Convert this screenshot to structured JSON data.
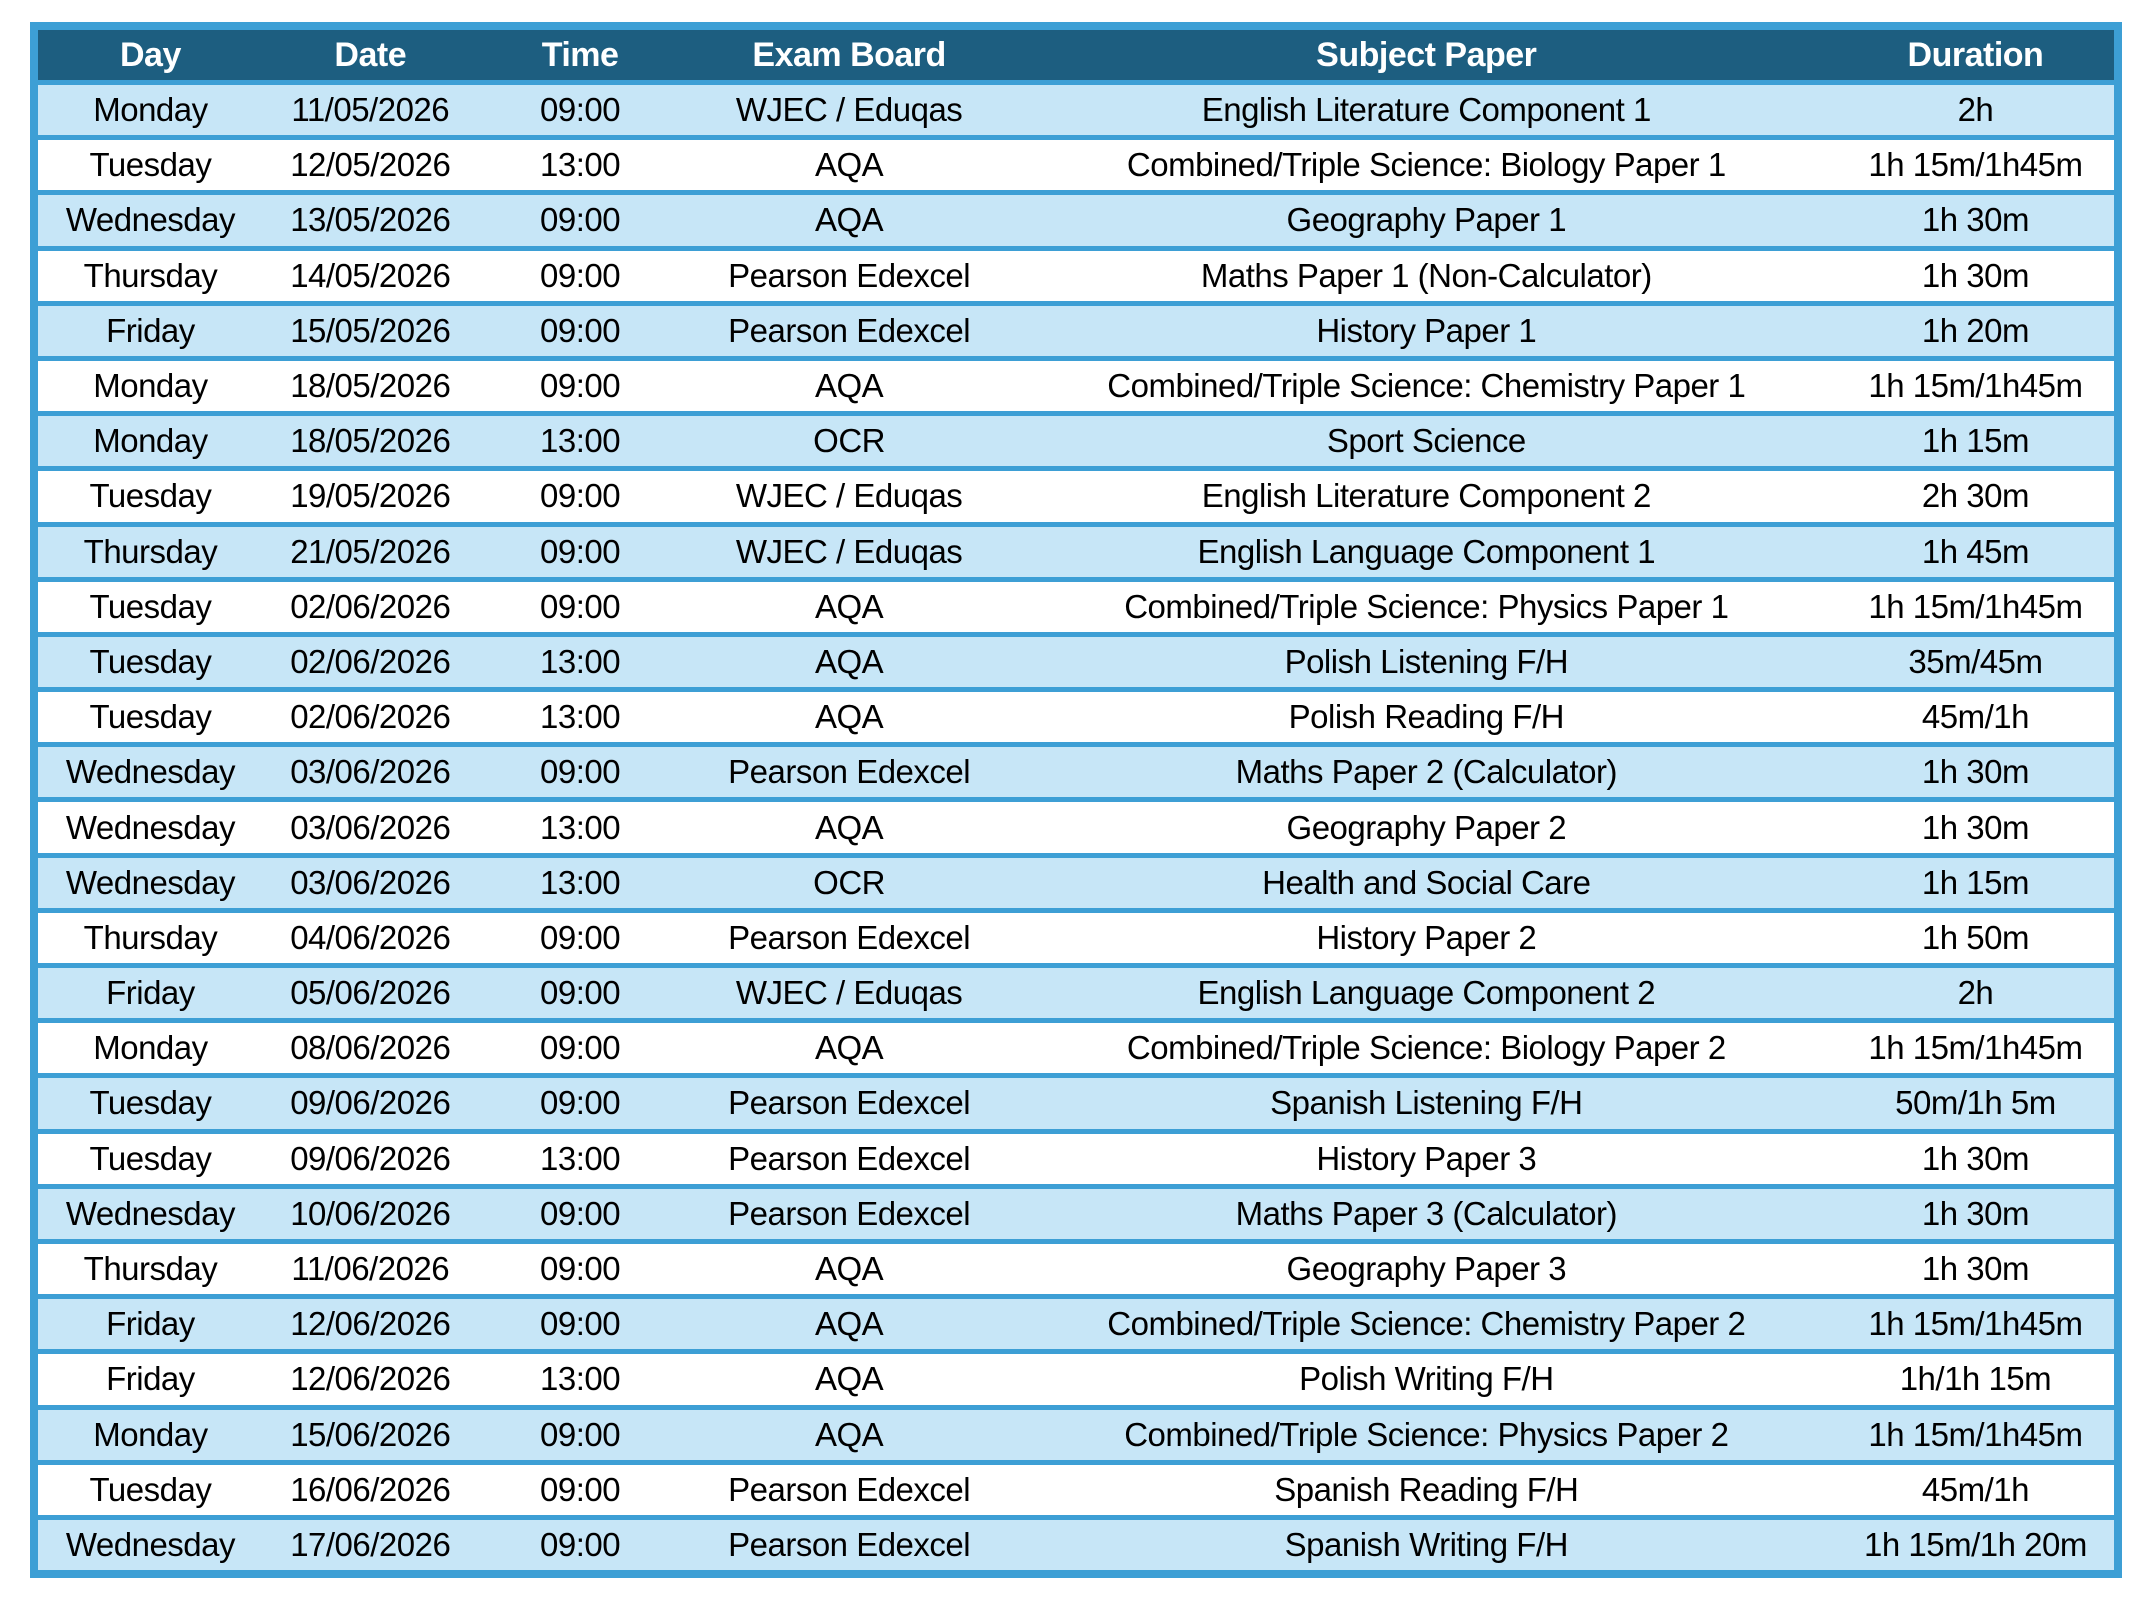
{
  "colors": {
    "border": "#3d9fd5",
    "header_bg": "#1d5e80",
    "header_text": "#ffffff",
    "row_alt": "#c7e6f7",
    "row_base": "#ffffff",
    "cell_text": "#000000"
  },
  "table": {
    "columns": [
      {
        "key": "day",
        "label": "Day"
      },
      {
        "key": "date",
        "label": "Date"
      },
      {
        "key": "time",
        "label": "Time"
      },
      {
        "key": "board",
        "label": "Exam Board"
      },
      {
        "key": "subject",
        "label": "Subject Paper"
      },
      {
        "key": "duration",
        "label": "Duration"
      }
    ],
    "rows": [
      {
        "day": "Monday",
        "date": "11/05/2026",
        "time": "09:00",
        "board": "WJEC / Eduqas",
        "subject": "English Literature Component 1",
        "duration": "2h"
      },
      {
        "day": "Tuesday",
        "date": "12/05/2026",
        "time": "13:00",
        "board": "AQA",
        "subject": "Combined/Triple Science: Biology Paper 1",
        "duration": "1h 15m/1h45m"
      },
      {
        "day": "Wednesday",
        "date": "13/05/2026",
        "time": "09:00",
        "board": "AQA",
        "subject": "Geography Paper 1",
        "duration": "1h 30m"
      },
      {
        "day": "Thursday",
        "date": "14/05/2026",
        "time": "09:00",
        "board": "Pearson Edexcel",
        "subject": "Maths Paper 1 (Non-Calculator)",
        "duration": "1h 30m"
      },
      {
        "day": "Friday",
        "date": "15/05/2026",
        "time": "09:00",
        "board": "Pearson Edexcel",
        "subject": "History Paper 1",
        "duration": "1h 20m"
      },
      {
        "day": "Monday",
        "date": "18/05/2026",
        "time": "09:00",
        "board": "AQA",
        "subject": "Combined/Triple Science: Chemistry Paper 1",
        "duration": "1h 15m/1h45m"
      },
      {
        "day": "Monday",
        "date": "18/05/2026",
        "time": "13:00",
        "board": "OCR",
        "subject": "Sport Science",
        "duration": "1h 15m"
      },
      {
        "day": "Tuesday",
        "date": "19/05/2026",
        "time": "09:00",
        "board": "WJEC / Eduqas",
        "subject": "English Literature Component 2",
        "duration": "2h 30m"
      },
      {
        "day": "Thursday",
        "date": "21/05/2026",
        "time": "09:00",
        "board": "WJEC / Eduqas",
        "subject": "English Language Component 1",
        "duration": "1h 45m"
      },
      {
        "day": "Tuesday",
        "date": "02/06/2026",
        "time": "09:00",
        "board": "AQA",
        "subject": "Combined/Triple Science: Physics Paper 1",
        "duration": "1h 15m/1h45m"
      },
      {
        "day": "Tuesday",
        "date": "02/06/2026",
        "time": "13:00",
        "board": "AQA",
        "subject": "Polish Listening F/H",
        "duration": "35m/45m"
      },
      {
        "day": "Tuesday",
        "date": "02/06/2026",
        "time": "13:00",
        "board": "AQA",
        "subject": "Polish Reading F/H",
        "duration": "45m/1h"
      },
      {
        "day": "Wednesday",
        "date": "03/06/2026",
        "time": "09:00",
        "board": "Pearson Edexcel",
        "subject": "Maths Paper 2 (Calculator)",
        "duration": "1h 30m"
      },
      {
        "day": "Wednesday",
        "date": "03/06/2026",
        "time": "13:00",
        "board": "AQA",
        "subject": "Geography Paper 2",
        "duration": "1h 30m"
      },
      {
        "day": "Wednesday",
        "date": "03/06/2026",
        "time": "13:00",
        "board": "OCR",
        "subject": "Health and Social Care",
        "duration": "1h 15m"
      },
      {
        "day": "Thursday",
        "date": "04/06/2026",
        "time": "09:00",
        "board": "Pearson Edexcel",
        "subject": "History Paper 2",
        "duration": "1h 50m"
      },
      {
        "day": "Friday",
        "date": "05/06/2026",
        "time": "09:00",
        "board": "WJEC / Eduqas",
        "subject": "English Language Component 2",
        "duration": "2h"
      },
      {
        "day": "Monday",
        "date": "08/06/2026",
        "time": "09:00",
        "board": "AQA",
        "subject": "Combined/Triple Science: Biology Paper 2",
        "duration": "1h 15m/1h45m"
      },
      {
        "day": "Tuesday",
        "date": "09/06/2026",
        "time": "09:00",
        "board": "Pearson Edexcel",
        "subject": "Spanish Listening F/H",
        "duration": "50m/1h 5m"
      },
      {
        "day": "Tuesday",
        "date": "09/06/2026",
        "time": "13:00",
        "board": "Pearson Edexcel",
        "subject": "History Paper 3",
        "duration": "1h 30m"
      },
      {
        "day": "Wednesday",
        "date": "10/06/2026",
        "time": "09:00",
        "board": "Pearson Edexcel",
        "subject": "Maths Paper 3 (Calculator)",
        "duration": "1h 30m"
      },
      {
        "day": "Thursday",
        "date": "11/06/2026",
        "time": "09:00",
        "board": "AQA",
        "subject": "Geography Paper 3",
        "duration": "1h 30m"
      },
      {
        "day": "Friday",
        "date": "12/06/2026",
        "time": "09:00",
        "board": "AQA",
        "subject": "Combined/Triple Science: Chemistry Paper 2",
        "duration": "1h 15m/1h45m"
      },
      {
        "day": "Friday",
        "date": "12/06/2026",
        "time": "13:00",
        "board": "AQA",
        "subject": "Polish Writing F/H",
        "duration": "1h/1h 15m"
      },
      {
        "day": "Monday",
        "date": "15/06/2026",
        "time": "09:00",
        "board": "AQA",
        "subject": "Combined/Triple Science: Physics Paper 2",
        "duration": "1h 15m/1h45m"
      },
      {
        "day": "Tuesday",
        "date": "16/06/2026",
        "time": "09:00",
        "board": "Pearson Edexcel",
        "subject": "Spanish Reading F/H",
        "duration": "45m/1h"
      },
      {
        "day": "Wednesday",
        "date": "17/06/2026",
        "time": "09:00",
        "board": "Pearson Edexcel",
        "subject": "Spanish Writing F/H",
        "duration": "1h 15m/1h 20m"
      }
    ]
  }
}
